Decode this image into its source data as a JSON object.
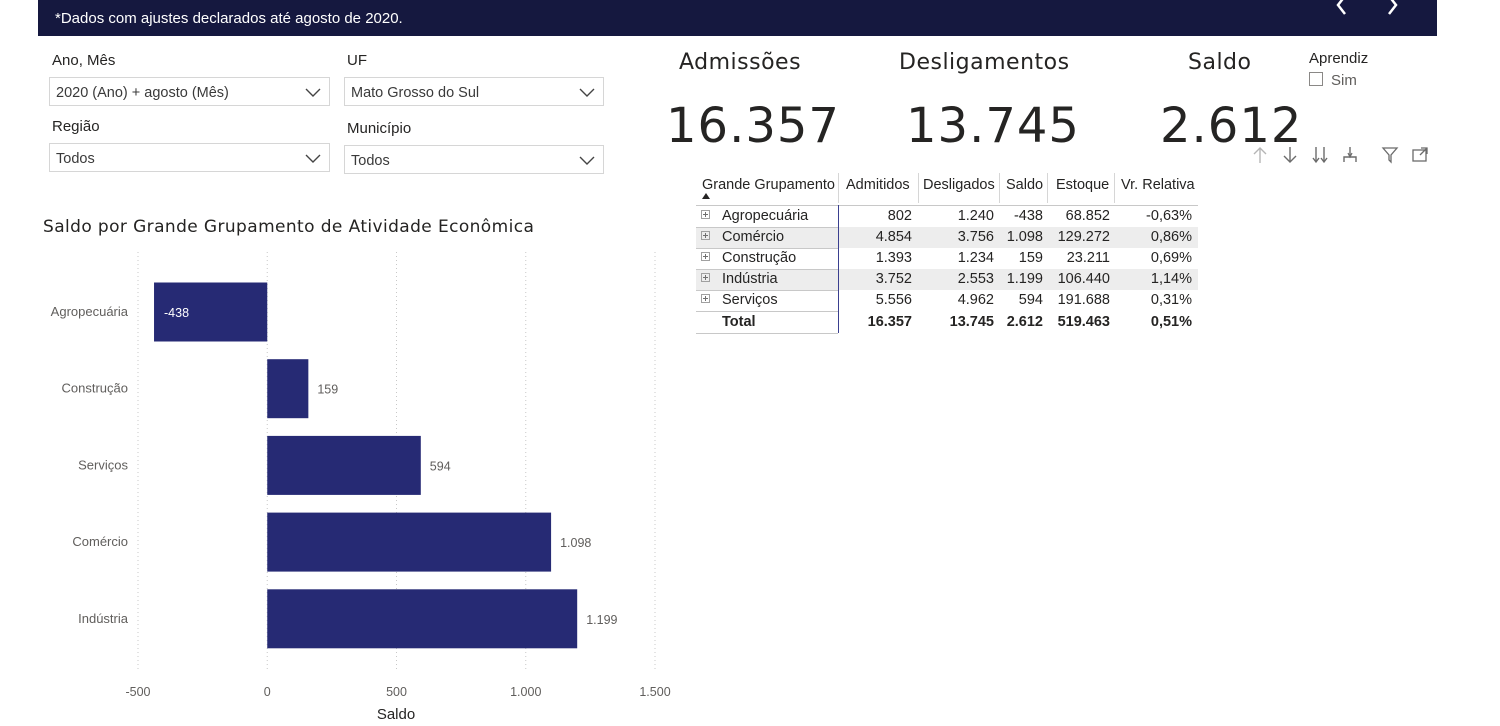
{
  "header": {
    "note": "*Dados com ajustes declarados até agosto de 2020."
  },
  "slicers": {
    "ano_mes": {
      "label": "Ano, Mês",
      "value": "2020 (Ano) + agosto (Mês)"
    },
    "uf": {
      "label": "UF",
      "value": "Mato Grosso do Sul"
    },
    "regiao": {
      "label": "Região",
      "value": "Todos"
    },
    "municipio": {
      "label": "Município",
      "value": "Todos"
    }
  },
  "kpis": {
    "admissoes": {
      "label": "Admissões",
      "value": "16.357"
    },
    "desligamentos": {
      "label": "Desligamentos",
      "value": "13.745"
    },
    "saldo": {
      "label": "Saldo",
      "value": "2.612"
    }
  },
  "aprendiz": {
    "title": "Aprendiz",
    "option": "Sim"
  },
  "table": {
    "headers": [
      "Grande Grupamento",
      "Admitidos",
      "Desligados",
      "Saldo",
      "Estoque",
      "Vr. Relativa"
    ],
    "rows": [
      [
        "Agropecuária",
        "802",
        "1.240",
        "-438",
        "68.852",
        "-0,63%"
      ],
      [
        "Comércio",
        "4.854",
        "3.756",
        "1.098",
        "129.272",
        "0,86%"
      ],
      [
        "Construção",
        "1.393",
        "1.234",
        "159",
        "23.211",
        "0,69%"
      ],
      [
        "Indústria",
        "3.752",
        "2.553",
        "1.199",
        "106.440",
        "1,14%"
      ],
      [
        "Serviços",
        "5.556",
        "4.962",
        "594",
        "191.688",
        "0,31%"
      ]
    ],
    "total": [
      "Total",
      "16.357",
      "13.745",
      "2.612",
      "519.463",
      "0,51%"
    ]
  },
  "chart_title": "Saldo por Grande Grupamento de Atividade Econômica",
  "chart_data": {
    "type": "bar",
    "orientation": "horizontal",
    "categories": [
      "Agropecuária",
      "Construção",
      "Serviços",
      "Comércio",
      "Indústria"
    ],
    "values": [
      -438,
      159,
      594,
      1098,
      1199
    ],
    "value_labels": [
      "-438",
      "159",
      "594",
      "1.098",
      "1.199"
    ],
    "xlim": [
      -500,
      1500
    ],
    "xticks": [
      -500,
      0,
      500,
      1000,
      1500
    ],
    "xtick_labels": [
      "-500",
      "0",
      "500",
      "1.000",
      "1.500"
    ],
    "xlabel": "Saldo",
    "grid": true,
    "bar_color": "#262a74"
  }
}
